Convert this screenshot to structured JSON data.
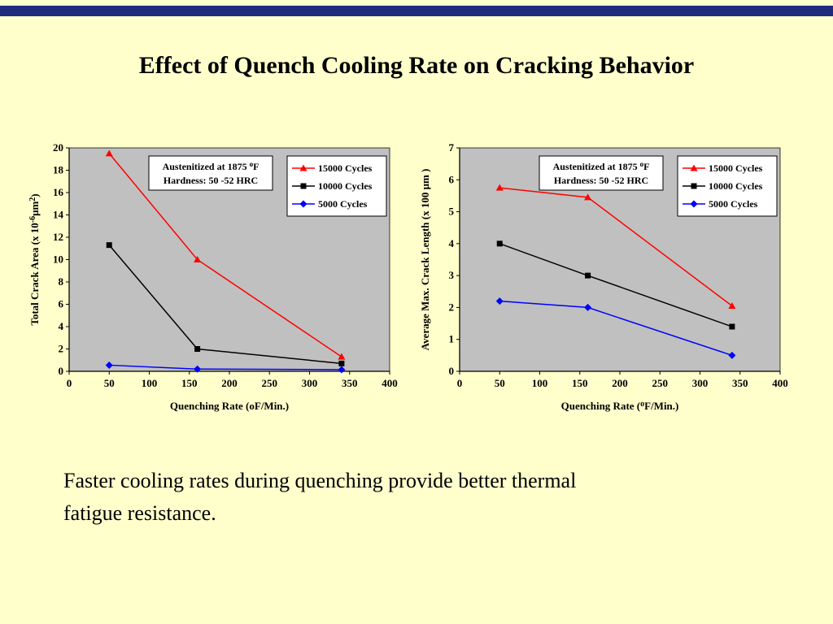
{
  "title": "Effect of Quench Cooling Rate on Cracking Behavior",
  "caption": {
    "lines": [
      "Faster cooling rates during quenching provide better thermal",
      "fatigue resistance."
    ]
  },
  "colors": {
    "background": "#FFFFCC",
    "top_bar": "#1F2A7E",
    "plot_background": "#C0C0C0",
    "series_red": "#FF0000",
    "series_black": "#000000",
    "series_blue": "#0000FF"
  },
  "chart_data": [
    {
      "type": "line",
      "title": "",
      "x": [
        50,
        160,
        340
      ],
      "xlim": [
        0,
        400
      ],
      "xticks": [
        0,
        50,
        100,
        150,
        200,
        250,
        300,
        350,
        400
      ],
      "ylim": [
        0,
        20
      ],
      "yticks": [
        0,
        2,
        4,
        6,
        8,
        10,
        12,
        14,
        16,
        18,
        20
      ],
      "xlabel_segments": [
        [
          "Quenching Rate (oF/Min.)",
          0
        ]
      ],
      "ylabel_segments": [
        [
          "Total Crack Area (x 10",
          0
        ],
        [
          "-6",
          1
        ],
        [
          "μm",
          0
        ],
        [
          "2",
          1
        ],
        [
          ")",
          0
        ]
      ],
      "annotation_lines": [
        [
          [
            "Austenitized at 1875 ",
            0
          ],
          [
            "o",
            1
          ],
          [
            "F",
            0
          ]
        ],
        [
          [
            "Hardness: 50 -52 HRC",
            0
          ]
        ]
      ],
      "plot_bg": "#C0C0C0",
      "legend_position": "top-right-inside",
      "grid": false,
      "series": [
        {
          "name": "15000 Cycles",
          "color": "#FF0000",
          "marker": "triangle",
          "values": [
            19.5,
            10.0,
            1.3
          ]
        },
        {
          "name": "10000 Cycles",
          "color": "#000000",
          "marker": "square",
          "values": [
            11.3,
            2.0,
            0.7
          ]
        },
        {
          "name": "5000 Cycles",
          "color": "#0000FF",
          "marker": "diamond",
          "values": [
            0.55,
            0.2,
            0.15
          ]
        }
      ]
    },
    {
      "type": "line",
      "title": "",
      "x": [
        50,
        160,
        340
      ],
      "xlim": [
        0,
        400
      ],
      "xticks": [
        0,
        50,
        100,
        150,
        200,
        250,
        300,
        350,
        400
      ],
      "ylim": [
        0,
        7
      ],
      "yticks": [
        0,
        1,
        2,
        3,
        4,
        5,
        6,
        7
      ],
      "xlabel_segments": [
        [
          "Quenching Rate (",
          0
        ],
        [
          "o",
          1
        ],
        [
          "F/Min.)",
          0
        ]
      ],
      "ylabel_segments": [
        [
          "Average Max. Crack Length (x 100 μm )",
          0
        ]
      ],
      "annotation_lines": [
        [
          [
            "Austenitized at 1875 ",
            0
          ],
          [
            "o",
            1
          ],
          [
            "F",
            0
          ]
        ],
        [
          [
            "Hardness: 50 -52 HRC",
            0
          ]
        ]
      ],
      "plot_bg": "#C0C0C0",
      "legend_position": "top-right-inside",
      "grid": false,
      "series": [
        {
          "name": "15000 Cycles",
          "color": "#FF0000",
          "marker": "triangle",
          "values": [
            5.75,
            5.45,
            2.05
          ]
        },
        {
          "name": "10000 Cycles",
          "color": "#000000",
          "marker": "square",
          "values": [
            4.0,
            3.0,
            1.4
          ]
        },
        {
          "name": "5000 Cycles",
          "color": "#0000FF",
          "marker": "diamond",
          "values": [
            2.2,
            2.0,
            0.5
          ]
        }
      ]
    }
  ]
}
